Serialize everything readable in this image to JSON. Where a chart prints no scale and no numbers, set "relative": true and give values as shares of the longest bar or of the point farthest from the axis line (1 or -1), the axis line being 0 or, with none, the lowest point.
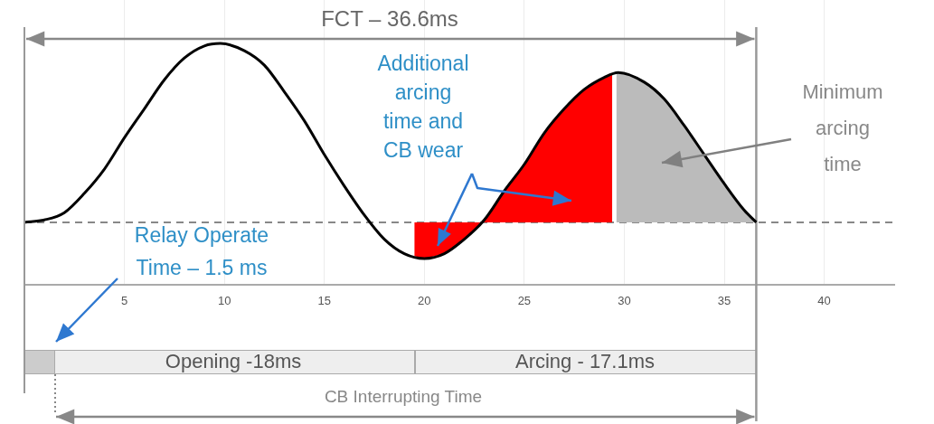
{
  "chart_data": {
    "type": "line",
    "relative": true,
    "xlim": [
      0,
      43.5
    ],
    "xticks": [
      5,
      10,
      15,
      20,
      25,
      30,
      35,
      40
    ],
    "grid": "x",
    "legend": false,
    "marker": "none",
    "series": [
      {
        "type": "area",
        "color": "#ff0000",
        "x": [
          19.5,
          19.5,
          20,
          21,
          22,
          23,
          24,
          25,
          26,
          27,
          28,
          29,
          29.4
        ],
        "values": [
          0.26,
          0.12,
          0.11,
          0.13,
          0.19,
          0.27,
          0.39,
          0.5,
          0.63,
          0.73,
          0.81,
          0.86,
          0.87
        ]
      },
      {
        "type": "area",
        "color": "#bbbbbb",
        "x": [
          29.6,
          30,
          31,
          32,
          33,
          34,
          35,
          36,
          36.6
        ],
        "values": [
          0.88,
          0.88,
          0.84,
          0.77,
          0.66,
          0.54,
          0.42,
          0.31,
          0.26
        ]
      },
      {
        "color": "#000000",
        "x": [
          0,
          1,
          2,
          3,
          4,
          5,
          6,
          7,
          8,
          9,
          9.8,
          11,
          12,
          13,
          14,
          15,
          16,
          17,
          18,
          19,
          20,
          21,
          22,
          23,
          24,
          25,
          26,
          27,
          28,
          29,
          29.7,
          31,
          32,
          33,
          34,
          35,
          36,
          36.6
        ],
        "values": [
          0.26,
          0.27,
          0.3,
          0.38,
          0.48,
          0.61,
          0.73,
          0.85,
          0.94,
          0.99,
          1,
          0.97,
          0.91,
          0.8,
          0.68,
          0.54,
          0.41,
          0.29,
          0.19,
          0.13,
          0.11,
          0.13,
          0.19,
          0.27,
          0.39,
          0.5,
          0.63,
          0.73,
          0.81,
          0.86,
          0.88,
          0.84,
          0.77,
          0.66,
          0.54,
          0.42,
          0.31,
          0.26
        ]
      }
    ],
    "ref_lines": [
      {
        "axis": "y",
        "value": 0.26,
        "line_style": "dashed",
        "color": "#888888"
      },
      {
        "axis": "x",
        "value": 36.6,
        "color": "#999999"
      }
    ],
    "annotations": [
      "FCT – 36.6ms",
      "Additional arcing time and CB wear",
      "Minimum arcing time",
      "Relay Operate Time – 1.5 ms",
      "Opening -18ms",
      "Arcing - 17.1ms",
      "CB Interrupting Time"
    ]
  }
}
